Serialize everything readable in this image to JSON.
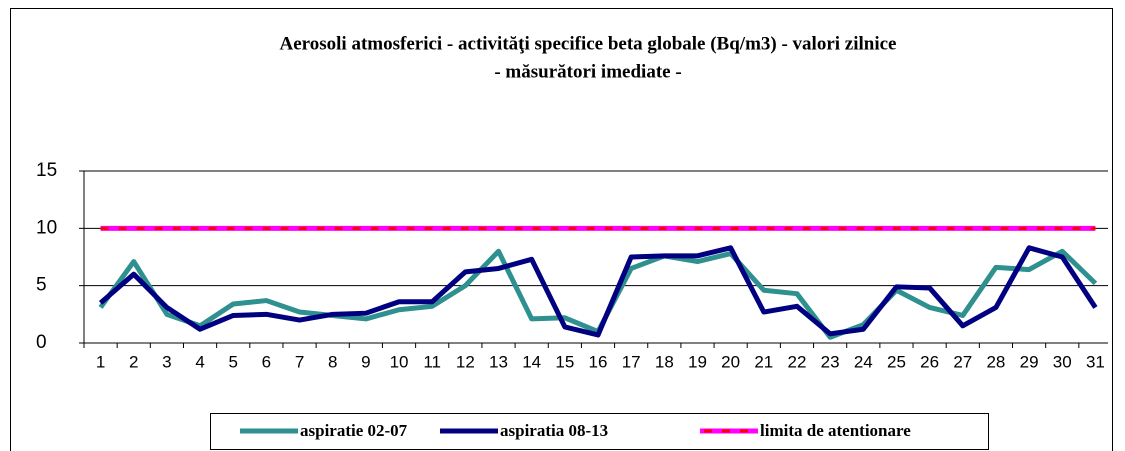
{
  "chart_data": {
    "type": "line",
    "title": "Aerosoli atmosferici - activităţi specifice beta   globale (Bq/m3) - valori zilnice",
    "subtitle": "- măsurători imediate -",
    "categories": [
      "1",
      "2",
      "3",
      "4",
      "5",
      "6",
      "7",
      "8",
      "9",
      "10",
      "11",
      "12",
      "13",
      "14",
      "15",
      "16",
      "17",
      "18",
      "19",
      "20",
      "21",
      "22",
      "23",
      "24",
      "25",
      "26",
      "27",
      "28",
      "29",
      "30",
      "31"
    ],
    "series": [
      {
        "name": "aspiratie 02-07",
        "color": "#2f9090",
        "values": [
          3.1,
          7.1,
          2.5,
          1.5,
          3.4,
          3.7,
          2.7,
          2.4,
          2.1,
          2.9,
          3.2,
          5.0,
          8.0,
          2.1,
          2.2,
          1.0,
          6.5,
          7.6,
          7.1,
          7.8,
          4.6,
          4.3,
          0.5,
          1.6,
          4.6,
          3.1,
          2.4,
          6.6,
          6.4,
          8.0,
          5.2
        ]
      },
      {
        "name": "aspiratia 08-13",
        "color": "#000080",
        "values": [
          3.5,
          6.0,
          3.1,
          1.2,
          2.4,
          2.5,
          2.0,
          2.5,
          2.6,
          3.6,
          3.6,
          6.2,
          6.5,
          7.3,
          1.4,
          0.7,
          7.5,
          7.6,
          7.6,
          8.3,
          2.7,
          3.2,
          0.8,
          1.2,
          4.9,
          4.8,
          1.5,
          3.1,
          8.3,
          7.5,
          3.1
        ]
      },
      {
        "name": "limita de atentionare",
        "color": "#ff00ff",
        "dash_color": "#ff0000",
        "values": [
          10,
          10,
          10,
          10,
          10,
          10,
          10,
          10,
          10,
          10,
          10,
          10,
          10,
          10,
          10,
          10,
          10,
          10,
          10,
          10,
          10,
          10,
          10,
          10,
          10,
          10,
          10,
          10,
          10,
          10,
          10
        ]
      }
    ],
    "ylim": [
      0,
      15
    ],
    "yticks": [
      0,
      5,
      10,
      15
    ],
    "grid": true
  }
}
